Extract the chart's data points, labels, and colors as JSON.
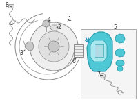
{
  "background_color": "#ffffff",
  "fig_width": 2.0,
  "fig_height": 1.47,
  "dpi": 100,
  "highlight_color": "#4ec8d4",
  "highlight_edge": "#2299aa",
  "highlight_light": "#a8e8ee",
  "gray_part": "#c8c8c8",
  "gray_edge": "#888888",
  "gray_light": "#e0e0e0",
  "arrow_color": "#2299bb",
  "label_color": "#333333",
  "wire_color": "#999999",
  "box_edge": "#aaaaaa",
  "labels": {
    "1": "1",
    "2": "2",
    "3": "3",
    "4": "4",
    "5": "5",
    "6": "6",
    "7": "7",
    "8": "8",
    "9": "9"
  }
}
